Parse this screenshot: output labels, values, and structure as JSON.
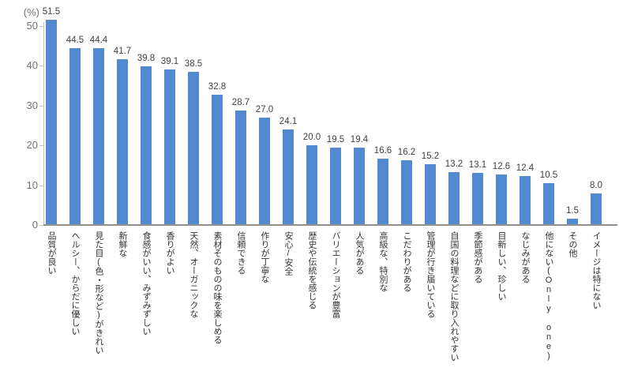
{
  "chart_data": {
    "type": "bar",
    "title": "",
    "unit_label": "(%)",
    "ylabel": "(%)",
    "xlabel": "",
    "ylim": [
      0,
      50
    ],
    "yticks": [
      0,
      10,
      20,
      30,
      40,
      50
    ],
    "grid": false,
    "legend": "none",
    "bar_color": "#5389ce",
    "axis_color": "#c2c2c2",
    "baseline_color": "#8f8f8f",
    "tick_label_color": "#737373",
    "value_label_color": "#404040",
    "category_label_color": "#333333",
    "categories": [
      "品質が良い",
      "ヘルシー、からだに優しい",
      "見た目(色・形など)がきれい",
      "新鮮な",
      "食感がいい、みずみずしい",
      "香りがよい",
      "天然、オーガニックな",
      "素材そのものの味を楽しめる",
      "信頼できる",
      "作りが丁寧な",
      "安心/安全",
      "歴史や伝統を感じる",
      "バリエーションが豊富",
      "人気がある",
      "高級な、特別な",
      "こだわりがある",
      "管理が行き届いている",
      "自国の料理などに取り入れやすい",
      "季節感がある",
      "目新しい、珍しい",
      "なじみがある",
      "他にない(Only one)",
      "その他",
      "イメージは特にない"
    ],
    "values": [
      51.5,
      44.5,
      44.4,
      41.7,
      39.8,
      39.1,
      38.5,
      32.8,
      28.7,
      27.0,
      24.1,
      20.0,
      19.5,
      19.4,
      16.6,
      16.2,
      15.2,
      13.2,
      13.1,
      12.6,
      12.4,
      10.5,
      1.5,
      8.0
    ]
  }
}
